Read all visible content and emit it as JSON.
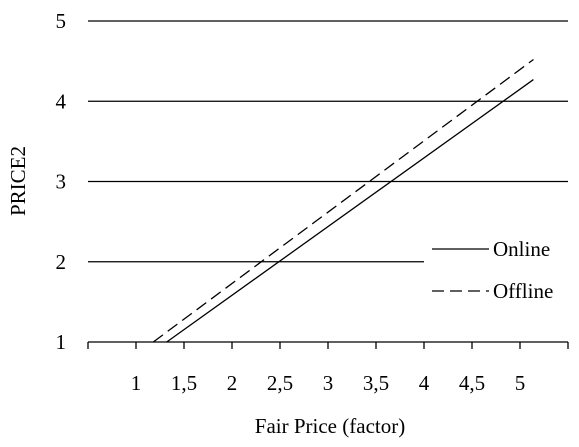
{
  "chart_data": {
    "type": "line",
    "xlabel": "Fair Price (factor)",
    "ylabel": "PRICE2",
    "xlim": [
      0.5,
      5.5
    ],
    "ylim": [
      1,
      5
    ],
    "x_ticks": [
      1,
      1.5,
      2,
      2.5,
      3,
      3.5,
      4,
      4.5,
      5
    ],
    "x_tick_labels": [
      "1",
      "1,5",
      "2",
      "2,5",
      "3",
      "3,5",
      "4",
      "4,5",
      "5"
    ],
    "y_ticks": [
      1,
      2,
      3,
      4,
      5
    ],
    "y_tick_labels": [
      "1",
      "2",
      "3",
      "4",
      "5"
    ],
    "grid": "horizontal",
    "legend_position": "right",
    "series": [
      {
        "name": "Online",
        "style": "solid",
        "color": "#000000",
        "x": [
          1.32,
          5.14
        ],
        "y": [
          1.0,
          4.27
        ]
      },
      {
        "name": "Offline",
        "style": "dashed",
        "color": "#000000",
        "x": [
          1.18,
          5.14
        ],
        "y": [
          1.0,
          4.52
        ]
      }
    ]
  }
}
